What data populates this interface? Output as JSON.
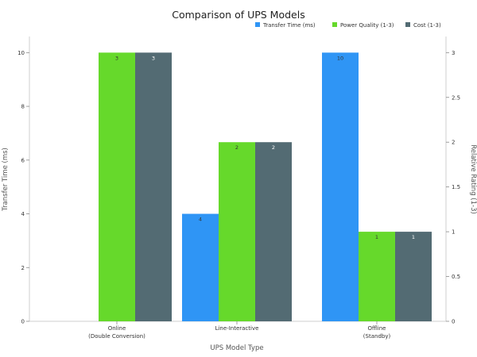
{
  "chart_data": {
    "type": "bar",
    "title": "Comparison of UPS Models",
    "xlabel": "UPS Model Type",
    "ylabel_left": "Transfer Time (ms)",
    "ylabel_right": "Relative Rating (1-3)",
    "categories": [
      [
        "Online",
        "(Double Conversion)"
      ],
      [
        "Line-Interactive"
      ],
      [
        "Offline",
        "(Standby)"
      ]
    ],
    "left_axis": {
      "ylim": [
        0,
        10.6
      ],
      "ticks": [
        0,
        2,
        4,
        6,
        8,
        10
      ]
    },
    "right_axis": {
      "ylim": [
        0,
        3.18
      ],
      "ticks": [
        0,
        0.5,
        1,
        1.5,
        2,
        2.5,
        3
      ],
      "tick_labels": [
        "0",
        "0.5",
        "1",
        "1.5",
        "2",
        "2.5",
        "3"
      ]
    },
    "series": [
      {
        "name": "Transfer Time (ms)",
        "axis": "left",
        "color": "#2f95f5",
        "values": [
          0,
          4,
          10
        ],
        "labels": [
          "",
          "4",
          "10"
        ],
        "label_color": "#333333"
      },
      {
        "name": "Power Quality (1-3)",
        "axis": "right",
        "color": "#66d92b",
        "values": [
          3,
          2,
          1
        ],
        "labels": [
          "3",
          "2",
          "1"
        ],
        "label_color": "#333333"
      },
      {
        "name": "Cost (1-3)",
        "axis": "right",
        "color": "#536b73",
        "values": [
          3,
          2,
          1
        ],
        "labels": [
          "3",
          "2",
          "1"
        ],
        "label_color": "#ffffff"
      }
    ],
    "legend_position": "top-right",
    "grid": false
  }
}
